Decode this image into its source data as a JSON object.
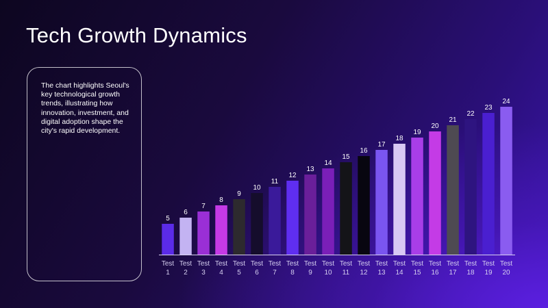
{
  "slide": {
    "title": "Tech Growth Dynamics",
    "description": "The chart highlights Seoul's key technological growth trends, illustrating how innovation, investment, and digital adoption shape the city's rapid development."
  },
  "chart_data": {
    "type": "bar",
    "categories": [
      [
        "Test",
        "1"
      ],
      [
        "Test",
        "2"
      ],
      [
        "Test",
        "3"
      ],
      [
        "Test",
        "4"
      ],
      [
        "Test",
        "5"
      ],
      [
        "Test",
        "6"
      ],
      [
        "Test",
        "7"
      ],
      [
        "Test",
        "8"
      ],
      [
        "Test",
        "9"
      ],
      [
        "Test",
        "10"
      ],
      [
        "Test",
        "11"
      ],
      [
        "Test",
        "12"
      ],
      [
        "Test",
        "13"
      ],
      [
        "Test",
        "14"
      ],
      [
        "Test",
        "15"
      ],
      [
        "Test",
        "16"
      ],
      [
        "Test",
        "17"
      ],
      [
        "Test",
        "18"
      ],
      [
        "Test",
        "19"
      ],
      [
        "Test",
        "20"
      ]
    ],
    "values": [
      5,
      6,
      7,
      8,
      9,
      10,
      11,
      12,
      13,
      14,
      15,
      16,
      17,
      18,
      19,
      20,
      21,
      22,
      23,
      24
    ],
    "bar_colors": [
      "#5b2be8",
      "#c3b3f2",
      "#9a2fd6",
      "#c53ae6",
      "#2d2a2e",
      "#150d2c",
      "#3a1a9a",
      "#5f2ef0",
      "#6a1f9a",
      "#7a1fb8",
      "#141418",
      "#080610",
      "#7a55f0",
      "#d8c8f4",
      "#a83ee8",
      "#c43be6",
      "#4e4a52",
      "#2e1480",
      "#4a1fd0",
      "#8a5cf0"
    ],
    "title": "",
    "xlabel": "",
    "ylabel": "",
    "ylim": [
      0,
      24
    ],
    "data_labels": true,
    "grid": false,
    "legend": "none"
  }
}
